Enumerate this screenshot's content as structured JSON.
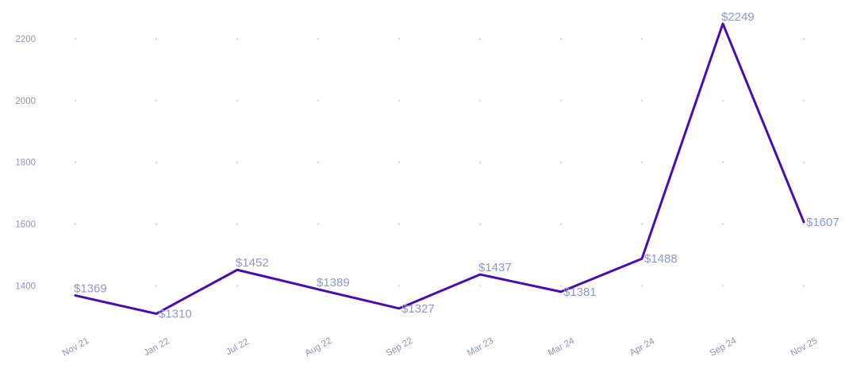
{
  "chart": {
    "line_color": "#4b0bb5",
    "data_label_color": "#8d99cf",
    "axis_label_color": "#8e93c0",
    "grid_dot_color": "#d2d2da",
    "background_color": "#ffffff"
  },
  "chart_data": {
    "type": "line",
    "categories": [
      "Nov 21",
      "Jan 22",
      "Jul 22",
      "Aug 22",
      "Sep 22",
      "Mar 23",
      "Mar 24",
      "Apr 24",
      "Sep 24",
      "Nov 25"
    ],
    "values": [
      1369,
      1310,
      1452,
      1389,
      1327,
      1437,
      1381,
      1488,
      2249,
      1607
    ],
    "data_labels": [
      "$1369",
      "$1310",
      "$1452",
      "$1389",
      "$1327",
      "$1437",
      "$1381",
      "$1488",
      "$2249",
      "$1607"
    ],
    "y_ticks": [
      1400,
      1600,
      1800,
      2000,
      2200
    ],
    "title": "",
    "xlabel": "",
    "ylabel": "",
    "ylim": [
      1290,
      2325
    ],
    "grid": "dotted-intersections",
    "legend": "none",
    "x_label_rotation": -29
  }
}
